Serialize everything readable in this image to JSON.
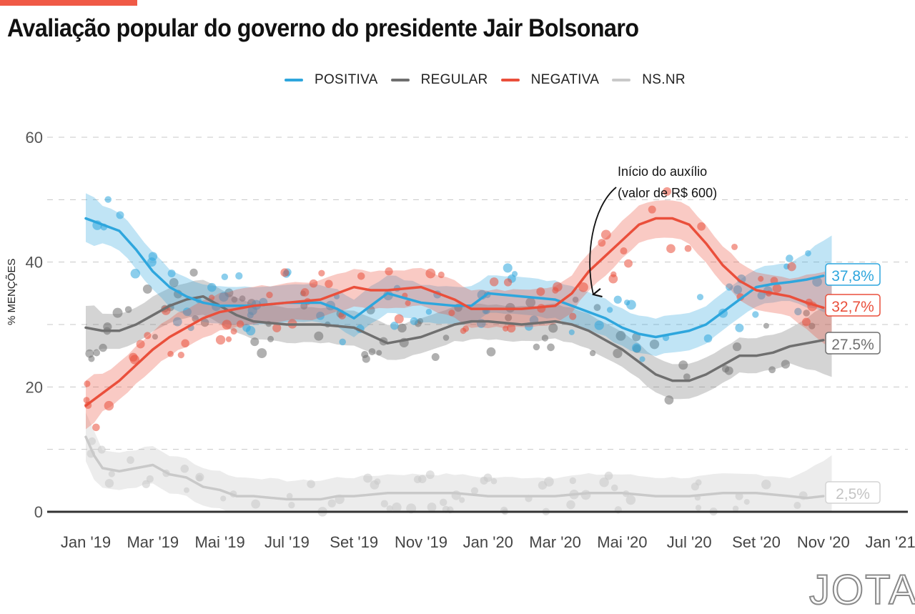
{
  "header": {
    "title": "Avaliação popular do governo do presidente Jair Bolsonaro"
  },
  "legend": [
    {
      "label": "POSITIVA",
      "color": "#2ea6dd"
    },
    {
      "label": "REGULAR",
      "color": "#6f6f6f"
    },
    {
      "label": "NEGATIVA",
      "color": "#ea4f3b"
    },
    {
      "label": "NS.NR",
      "color": "#c9c9c9"
    }
  ],
  "annotation": {
    "line1": "Início do auxílio",
    "line2": "(valor de R$ 600)"
  },
  "logo": "JOTA",
  "chart_data": {
    "type": "line",
    "title": "Avaliação popular do governo do presidente Jair Bolsonaro",
    "xlabel": "",
    "ylabel": "% MENÇÕES",
    "ylim": [
      0,
      60
    ],
    "yticks": [
      0,
      20,
      40,
      60
    ],
    "grid": true,
    "legend_position": "top",
    "x_unit": "months since Jan 2019",
    "xticks": [
      {
        "m": 0,
        "label": "Jan '19"
      },
      {
        "m": 2,
        "label": "Mar '19"
      },
      {
        "m": 4,
        "label": "Mai '19"
      },
      {
        "m": 6,
        "label": "Jul '19"
      },
      {
        "m": 8,
        "label": "Set '19"
      },
      {
        "m": 10,
        "label": "Nov '19"
      },
      {
        "m": 12,
        "label": "Jan '20"
      },
      {
        "m": 14,
        "label": "Mar '20"
      },
      {
        "m": 16,
        "label": "Mai '20"
      },
      {
        "m": 18,
        "label": "Jul '20"
      },
      {
        "m": 20,
        "label": "Set '20"
      },
      {
        "m": 22,
        "label": "Nov '20"
      },
      {
        "m": 24,
        "label": "Jan '21"
      }
    ],
    "annotation": {
      "text": "Início do auxílio (valor de R$ 600)",
      "x_month": 15.2,
      "y": 35
    },
    "series": [
      {
        "name": "POSITIVA",
        "color": "#2ea6dd",
        "band": 3,
        "end_label": "37,8%",
        "x": [
          0,
          0.5,
          1,
          1.5,
          2,
          2.5,
          3,
          3.5,
          4,
          4.5,
          5,
          6,
          7,
          7.5,
          8,
          8.5,
          9,
          10,
          11,
          11.5,
          12,
          13,
          14,
          14.5,
          15,
          15.5,
          16,
          16.5,
          17,
          17.5,
          18,
          18.5,
          19,
          19.5,
          20,
          20.5,
          21,
          21.5,
          22
        ],
        "values": [
          47,
          46,
          45,
          42,
          38.5,
          36,
          34.5,
          33.5,
          33,
          33,
          33,
          33.5,
          33.5,
          32.5,
          31,
          33,
          35,
          33.5,
          33,
          33,
          35,
          34.5,
          34,
          33,
          32,
          31,
          29.5,
          28.5,
          28,
          28.5,
          29,
          30,
          32,
          34,
          36,
          36.5,
          36.8,
          37.2,
          37.8
        ]
      },
      {
        "name": "REGULAR",
        "color": "#6f6f6f",
        "band": 2.8,
        "end_label": "27.5%",
        "x": [
          0,
          0.5,
          1,
          1.5,
          2,
          2.5,
          3,
          3.5,
          4,
          4.5,
          5,
          6,
          7,
          8,
          9,
          9.5,
          10,
          11,
          11.5,
          12,
          13,
          14,
          14.5,
          15,
          15.5,
          16,
          16.5,
          17,
          17.5,
          18,
          18.5,
          19,
          19.5,
          20,
          20.5,
          21,
          21.5,
          22
        ],
        "values": [
          29.5,
          29,
          29,
          30,
          31.5,
          33,
          34,
          34.5,
          33,
          31.5,
          30.5,
          30,
          30,
          29.5,
          27,
          27.5,
          28,
          30,
          30.5,
          30.5,
          30,
          30.5,
          30,
          29,
          27.5,
          26,
          24,
          22,
          21,
          21,
          22,
          23.5,
          25,
          25,
          25.5,
          26.5,
          27,
          27.5
        ]
      },
      {
        "name": "NEGATIVA",
        "color": "#ea4f3b",
        "band": 3,
        "end_label": "32,7%",
        "x": [
          0,
          0.5,
          1,
          1.5,
          2,
          2.5,
          3,
          3.5,
          4,
          4.5,
          5,
          6,
          7,
          7.5,
          8,
          8.5,
          9,
          10,
          11,
          11.5,
          12,
          13,
          14,
          14.5,
          15,
          15.5,
          16,
          16.5,
          17,
          17.5,
          18,
          18.5,
          19,
          19.5,
          20,
          20.5,
          21,
          21.5,
          22
        ],
        "values": [
          17,
          19,
          21,
          23.5,
          26,
          28,
          29.5,
          31,
          32,
          32.5,
          33,
          33.5,
          34,
          35,
          36,
          35.5,
          35.5,
          36,
          34,
          32.5,
          32.5,
          32.5,
          33,
          35,
          38.5,
          41,
          43.5,
          46,
          47,
          47,
          46,
          43,
          39.5,
          37,
          35.5,
          35,
          34.5,
          33.5,
          32.7
        ]
      },
      {
        "name": "NS.NR",
        "color": "#c9c9c9",
        "band": 3,
        "end_label": "2,5%",
        "x": [
          0,
          0.25,
          0.5,
          1,
          1.5,
          2,
          2.5,
          3,
          3.5,
          4,
          4.5,
          5,
          6,
          7,
          7.5,
          8,
          9,
          10,
          11,
          12,
          13,
          14,
          15,
          16,
          17,
          18,
          19,
          20,
          21,
          21.5,
          22
        ],
        "values": [
          12,
          9,
          7,
          6.5,
          7,
          7.5,
          6,
          5.5,
          4,
          3.5,
          2.5,
          2.5,
          2,
          2,
          2.5,
          2.5,
          3,
          3,
          3,
          2.5,
          2.5,
          2.5,
          3,
          3,
          2.5,
          2.5,
          3,
          3,
          2.5,
          2.2,
          2.5
        ]
      }
    ]
  }
}
